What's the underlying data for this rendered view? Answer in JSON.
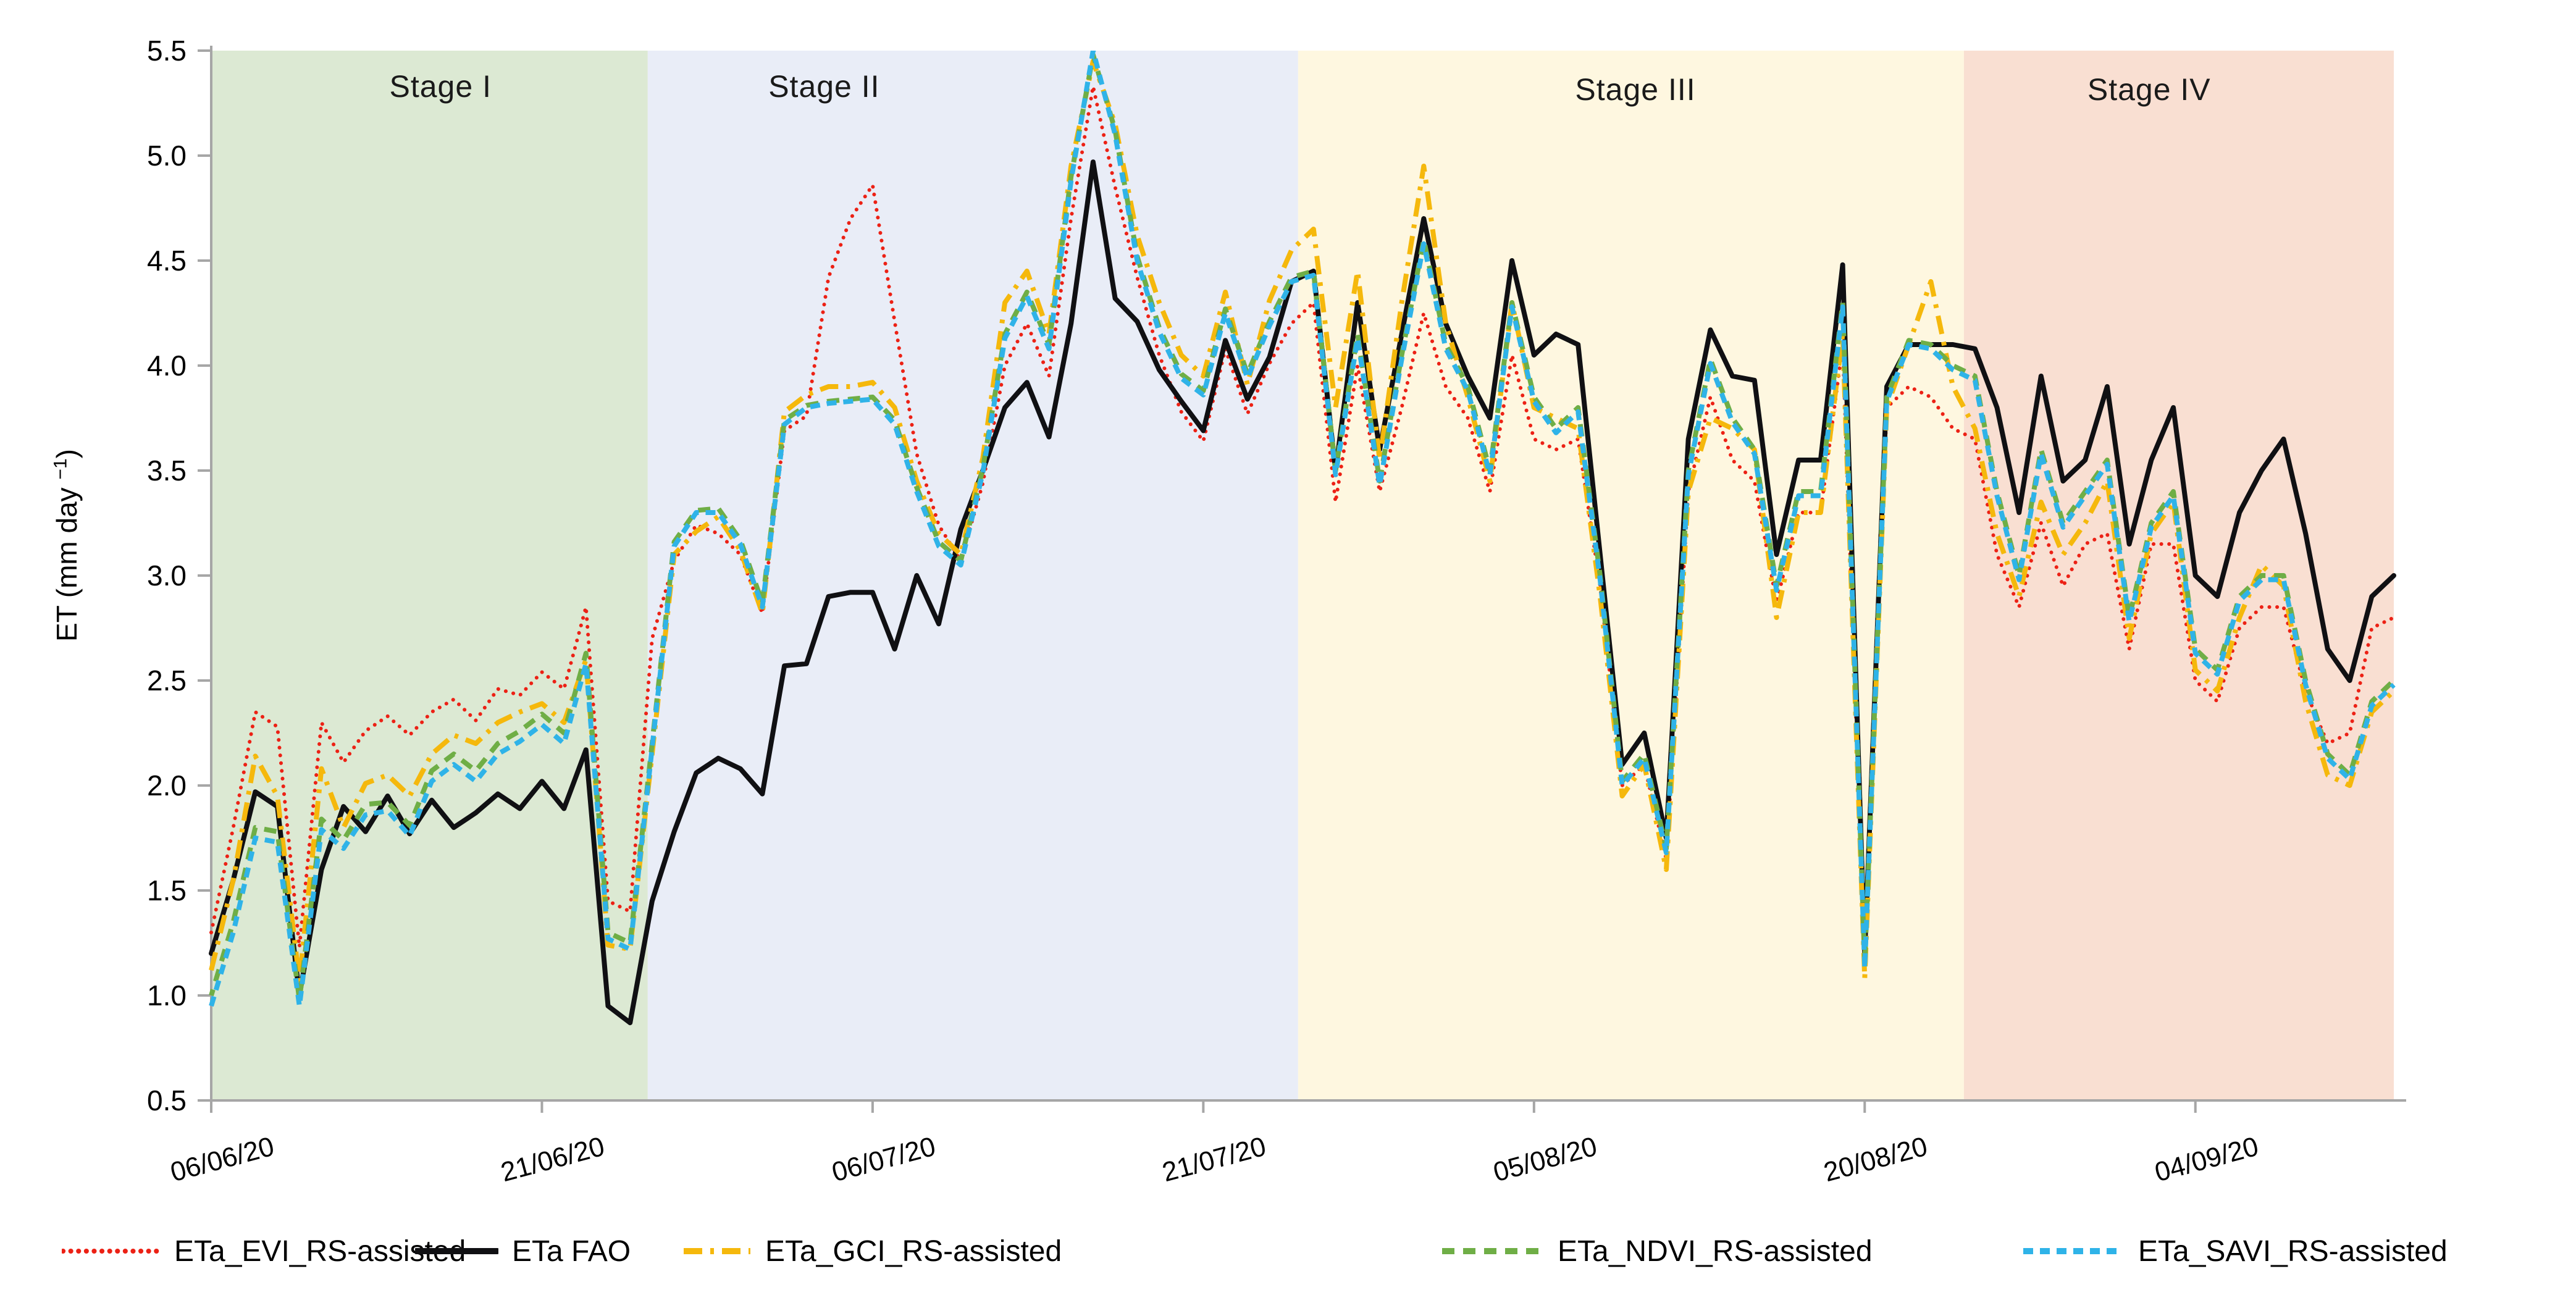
{
  "y_axis": {
    "title_prefix": "ET (mm day ",
    "title_sup": "−1",
    "title_suffix": ")",
    "tick_labels": [
      "5.5",
      "5.0",
      "4.5",
      "4.0",
      "3.5",
      "3.0",
      "2.5",
      "2.0",
      "1.5",
      "1.0",
      "0.5"
    ],
    "axis_color": "#a6a6a6"
  },
  "chart_data": {
    "type": "line",
    "title": "",
    "xlabel": "",
    "ylabel": "ET (mm day -1)",
    "ylim": [
      0.5,
      5.5
    ],
    "ytick_step": 0.5,
    "grid": false,
    "legend_position": "bottom",
    "x": {
      "start_date": "06/06/20",
      "end_date": "13/09/20",
      "n_points": 100,
      "tick_labels": [
        "06/06/20",
        "21/06/20",
        "06/07/20",
        "21/07/20",
        "05/08/20",
        "20/08/20",
        "04/09/20"
      ],
      "tick_day_indices": [
        0,
        15,
        30,
        45,
        60,
        75,
        90
      ]
    },
    "stages": [
      {
        "label": "Stage I",
        "color": "#dce9d3",
        "start_day": 0,
        "end_day": 19.8,
        "label_center_day": 10.4,
        "label_y": 140
      },
      {
        "label": "Stage II",
        "color": "#e9edf7",
        "start_day": 19.8,
        "end_day": 49.3,
        "label_center_day": 27.8,
        "label_y": 140
      },
      {
        "label": "Stage III",
        "color": "#fef7e0",
        "start_day": 49.3,
        "end_day": 79.5,
        "label_center_day": 64.6,
        "label_y": 145
      },
      {
        "label": "Stage IV",
        "color": "#f9dfd2",
        "start_day": 79.5,
        "end_day": 99,
        "label_center_day": 87.9,
        "label_y": 145
      }
    ],
    "series": [
      {
        "name": "ETa_EVI_RS-assisted",
        "color": "#ec2115",
        "style": "dotted",
        "dash": "0.1 12.5",
        "width": 6,
        "linecap": "round",
        "values": [
          1.3,
          1.8,
          2.35,
          2.28,
          1.23,
          2.3,
          2.11,
          2.26,
          2.33,
          2.24,
          2.35,
          2.41,
          2.31,
          2.46,
          2.43,
          2.54,
          2.46,
          2.85,
          1.45,
          1.4,
          2.7,
          3.07,
          3.24,
          3.2,
          3.1,
          2.82,
          3.69,
          3.76,
          4.42,
          4.7,
          4.86,
          4.21,
          3.58,
          3.24,
          3.07,
          3.44,
          4.0,
          4.2,
          3.95,
          4.7,
          5.33,
          4.85,
          4.42,
          4.05,
          3.78,
          3.64,
          4.08,
          3.77,
          4.01,
          4.2,
          4.3,
          3.35,
          4.0,
          3.4,
          3.8,
          4.25,
          3.9,
          3.75,
          3.4,
          4.05,
          3.65,
          3.6,
          3.65,
          2.95,
          2.0,
          2.1,
          1.65,
          3.4,
          3.85,
          3.55,
          3.45,
          2.87,
          3.3,
          3.3,
          4.1,
          1.15,
          3.8,
          3.9,
          3.85,
          3.7,
          3.65,
          3.1,
          2.85,
          3.25,
          2.95,
          3.15,
          3.2,
          2.65,
          3.15,
          3.15,
          2.5,
          2.4,
          2.75,
          2.85,
          2.85,
          2.45,
          2.2,
          2.25,
          2.75,
          2.8
        ]
      },
      {
        "name": "ETa FAO",
        "color": "#101013",
        "style": "solid",
        "dash": "",
        "width": 8,
        "linecap": "round",
        "values": [
          1.2,
          1.55,
          1.97,
          1.9,
          1.0,
          1.6,
          1.9,
          1.78,
          1.95,
          1.77,
          1.93,
          1.8,
          1.87,
          1.96,
          1.89,
          2.02,
          1.89,
          2.17,
          0.95,
          0.87,
          1.45,
          1.78,
          2.06,
          2.13,
          2.08,
          1.96,
          2.57,
          2.58,
          2.9,
          2.92,
          2.92,
          2.65,
          3.0,
          2.77,
          3.22,
          3.5,
          3.8,
          3.92,
          3.66,
          4.2,
          4.97,
          4.32,
          4.21,
          3.98,
          3.83,
          3.69,
          4.12,
          3.84,
          4.04,
          4.4,
          4.45,
          3.5,
          4.3,
          3.6,
          4.15,
          4.7,
          4.2,
          3.95,
          3.75,
          4.5,
          4.05,
          4.15,
          4.1,
          3.1,
          2.1,
          2.25,
          1.75,
          3.65,
          4.17,
          3.95,
          3.93,
          3.1,
          3.55,
          3.55,
          4.48,
          1.2,
          3.9,
          4.1,
          4.1,
          4.1,
          4.08,
          3.8,
          3.3,
          3.95,
          3.45,
          3.55,
          3.9,
          3.15,
          3.55,
          3.8,
          3.0,
          2.9,
          3.3,
          3.5,
          3.65,
          3.2,
          2.65,
          2.5,
          2.9,
          3.0
        ]
      },
      {
        "name": "ETa_GCI_RS-assisted",
        "color": "#f5b80c",
        "style": "dash-dot",
        "dash": "30 13 6 13",
        "width": 8,
        "linecap": "butt",
        "values": [
          1.12,
          1.55,
          2.14,
          1.95,
          1.07,
          2.08,
          1.8,
          2.01,
          2.05,
          1.95,
          2.15,
          2.24,
          2.2,
          2.3,
          2.35,
          2.39,
          2.3,
          2.6,
          1.24,
          1.22,
          2.15,
          3.1,
          3.21,
          3.28,
          3.12,
          2.82,
          3.78,
          3.86,
          3.9,
          3.9,
          3.92,
          3.8,
          3.45,
          3.2,
          3.1,
          3.56,
          4.3,
          4.45,
          4.15,
          4.95,
          5.45,
          5.15,
          4.62,
          4.3,
          4.05,
          3.95,
          4.35,
          3.91,
          4.31,
          4.55,
          4.65,
          3.8,
          4.45,
          3.55,
          4.3,
          4.95,
          4.2,
          3.85,
          3.45,
          4.3,
          3.8,
          3.75,
          3.7,
          2.9,
          1.95,
          2.1,
          1.6,
          3.4,
          3.75,
          3.7,
          3.6,
          2.8,
          3.3,
          3.3,
          4.15,
          1.08,
          3.8,
          4.1,
          4.4,
          3.9,
          3.7,
          3.2,
          2.9,
          3.35,
          3.1,
          3.25,
          3.45,
          2.7,
          3.2,
          3.35,
          2.55,
          2.45,
          2.8,
          3.05,
          2.95,
          2.4,
          2.05,
          2.0,
          2.35,
          2.45
        ]
      },
      {
        "name": "ETa_NDVI_RS-assisted",
        "color": "#6fae46",
        "style": "dashed",
        "dash": "20 14",
        "width": 8,
        "linecap": "butt",
        "values": [
          1.0,
          1.35,
          1.8,
          1.78,
          0.98,
          1.84,
          1.74,
          1.91,
          1.92,
          1.81,
          2.07,
          2.15,
          2.07,
          2.2,
          2.26,
          2.34,
          2.25,
          2.63,
          1.3,
          1.25,
          2.2,
          3.16,
          3.31,
          3.32,
          3.17,
          2.87,
          3.74,
          3.81,
          3.83,
          3.84,
          3.85,
          3.74,
          3.42,
          3.16,
          3.07,
          3.51,
          4.15,
          4.35,
          4.1,
          4.9,
          5.48,
          5.12,
          4.52,
          4.18,
          3.96,
          3.88,
          4.27,
          3.96,
          4.21,
          4.42,
          4.45,
          3.5,
          4.15,
          3.45,
          4.05,
          4.6,
          4.1,
          3.9,
          3.5,
          4.3,
          3.85,
          3.7,
          3.8,
          3.0,
          2.02,
          2.15,
          1.7,
          3.5,
          4.03,
          3.75,
          3.6,
          2.95,
          3.4,
          3.4,
          4.3,
          1.15,
          3.85,
          4.12,
          4.1,
          4.0,
          3.95,
          3.4,
          3.0,
          3.6,
          3.25,
          3.4,
          3.55,
          2.8,
          3.25,
          3.4,
          2.65,
          2.55,
          2.9,
          3.0,
          3.0,
          2.5,
          2.15,
          2.05,
          2.4,
          2.5
        ]
      },
      {
        "name": "ETa_SAVI_RS-assisted",
        "color": "#2fb3e8",
        "style": "dashed",
        "dash": "16 11",
        "width": 8,
        "linecap": "butt",
        "values": [
          0.95,
          1.3,
          1.75,
          1.73,
          0.95,
          1.79,
          1.7,
          1.86,
          1.88,
          1.76,
          2.02,
          2.1,
          2.02,
          2.15,
          2.21,
          2.29,
          2.2,
          2.58,
          1.27,
          1.22,
          2.18,
          3.14,
          3.3,
          3.3,
          3.15,
          2.85,
          3.72,
          3.8,
          3.82,
          3.83,
          3.84,
          3.72,
          3.4,
          3.14,
          3.05,
          3.49,
          4.13,
          4.33,
          4.08,
          4.88,
          5.5,
          5.1,
          4.5,
          4.16,
          3.94,
          3.86,
          4.25,
          3.94,
          4.19,
          4.4,
          4.43,
          3.48,
          4.13,
          3.43,
          4.03,
          4.58,
          4.08,
          3.88,
          3.48,
          4.28,
          3.83,
          3.68,
          3.78,
          2.98,
          2.0,
          2.13,
          1.68,
          3.48,
          4.01,
          3.73,
          3.58,
          2.93,
          3.38,
          3.38,
          4.28,
          1.13,
          3.83,
          4.1,
          4.08,
          3.98,
          3.93,
          3.38,
          2.98,
          3.58,
          3.23,
          3.38,
          3.53,
          2.78,
          3.23,
          3.38,
          2.63,
          2.53,
          2.88,
          2.98,
          2.98,
          2.48,
          2.13,
          2.03,
          2.38,
          2.48
        ]
      }
    ]
  },
  "legend": {
    "items": [
      {
        "label": "ETa_EVI_RS-assisted",
        "x": 100,
        "marker_w": 160,
        "series_index": 0
      },
      {
        "label": "ETa FAO",
        "x": 672,
        "marker_w": 135,
        "series_index": 1
      },
      {
        "label": "ETa_GCI_RS-assisted",
        "x": 1105,
        "marker_w": 112,
        "series_index": 2
      },
      {
        "label": "ETa_NDVI_RS-assisted",
        "x": 2333,
        "marker_w": 167,
        "series_index": 3
      },
      {
        "label": "ETa_SAVI_RS-assisted",
        "x": 3274,
        "marker_w": 166,
        "series_index": 4
      }
    ]
  }
}
